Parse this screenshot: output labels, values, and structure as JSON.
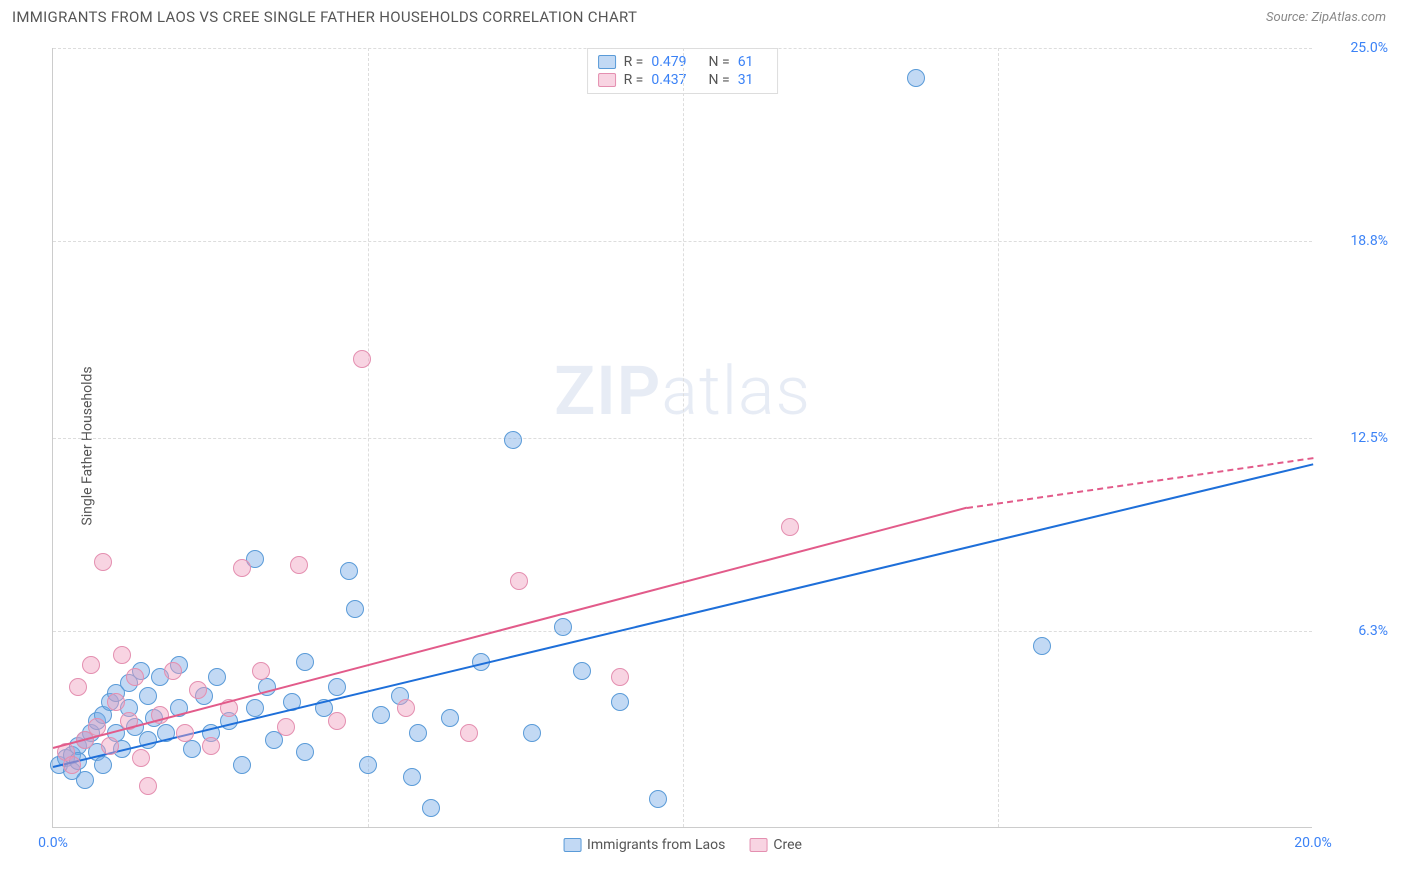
{
  "header": {
    "title": "IMMIGRANTS FROM LAOS VS CREE SINGLE FATHER HOUSEHOLDS CORRELATION CHART",
    "source_prefix": "Source: ",
    "source": "ZipAtlas.com"
  },
  "watermark": {
    "bold": "ZIP",
    "light": "atlas"
  },
  "axes": {
    "ylabel": "Single Father Households",
    "xlim": [
      0,
      20
    ],
    "ylim": [
      0,
      25
    ],
    "xticks": [
      {
        "v": 0,
        "label": "0.0%"
      },
      {
        "v": 20,
        "label": "20.0%"
      }
    ],
    "xgrid": [
      5,
      10,
      15
    ],
    "yticks": [
      {
        "v": 6.3,
        "label": "6.3%"
      },
      {
        "v": 12.5,
        "label": "12.5%"
      },
      {
        "v": 18.8,
        "label": "18.8%"
      },
      {
        "v": 25.0,
        "label": "25.0%"
      }
    ],
    "grid_color": "#dddddd",
    "axis_color": "#cccccc",
    "tick_label_color": "#3b82f6",
    "tick_fontsize": 14
  },
  "series": [
    {
      "name": "Immigrants from Laos",
      "color_fill": "rgba(120,170,230,0.45)",
      "color_stroke": "#5a9bd8",
      "trend_color": "#1e6fd9",
      "marker_radius": 9,
      "stats": {
        "R": "0.479",
        "N": "61"
      },
      "trend": {
        "x1": 0,
        "y1": 2.0,
        "x2": 20,
        "y2": 11.7
      },
      "points": [
        [
          0.1,
          2.0
        ],
        [
          0.2,
          2.2
        ],
        [
          0.3,
          2.3
        ],
        [
          0.3,
          1.8
        ],
        [
          0.4,
          2.6
        ],
        [
          0.4,
          2.1
        ],
        [
          0.5,
          2.8
        ],
        [
          0.5,
          1.5
        ],
        [
          0.6,
          3.0
        ],
        [
          0.7,
          2.4
        ],
        [
          0.7,
          3.4
        ],
        [
          0.8,
          2.0
        ],
        [
          0.8,
          3.6
        ],
        [
          0.9,
          4.0
        ],
        [
          1.0,
          3.0
        ],
        [
          1.0,
          4.3
        ],
        [
          1.1,
          2.5
        ],
        [
          1.2,
          3.8
        ],
        [
          1.2,
          4.6
        ],
        [
          1.3,
          3.2
        ],
        [
          1.4,
          5.0
        ],
        [
          1.5,
          2.8
        ],
        [
          1.5,
          4.2
        ],
        [
          1.6,
          3.5
        ],
        [
          1.7,
          4.8
        ],
        [
          1.8,
          3.0
        ],
        [
          2.0,
          3.8
        ],
        [
          2.0,
          5.2
        ],
        [
          2.2,
          2.5
        ],
        [
          2.4,
          4.2
        ],
        [
          2.5,
          3.0
        ],
        [
          2.6,
          4.8
        ],
        [
          2.8,
          3.4
        ],
        [
          3.0,
          2.0
        ],
        [
          3.2,
          3.8
        ],
        [
          3.2,
          8.6
        ],
        [
          3.4,
          4.5
        ],
        [
          3.5,
          2.8
        ],
        [
          3.8,
          4.0
        ],
        [
          4.0,
          2.4
        ],
        [
          4.0,
          5.3
        ],
        [
          4.3,
          3.8
        ],
        [
          4.5,
          4.5
        ],
        [
          4.7,
          8.2
        ],
        [
          4.8,
          7.0
        ],
        [
          5.0,
          2.0
        ],
        [
          5.2,
          3.6
        ],
        [
          5.5,
          4.2
        ],
        [
          5.7,
          1.6
        ],
        [
          5.8,
          3.0
        ],
        [
          6.0,
          0.6
        ],
        [
          6.3,
          3.5
        ],
        [
          6.8,
          5.3
        ],
        [
          7.3,
          12.4
        ],
        [
          7.6,
          3.0
        ],
        [
          8.1,
          6.4
        ],
        [
          8.4,
          5.0
        ],
        [
          9.0,
          4.0
        ],
        [
          9.6,
          0.9
        ],
        [
          13.7,
          24.0
        ],
        [
          15.7,
          5.8
        ]
      ]
    },
    {
      "name": "Cree",
      "color_fill": "rgba(240,160,190,0.45)",
      "color_stroke": "#e48fb0",
      "trend_color": "#e25b8a",
      "marker_radius": 9,
      "stats": {
        "R": "0.437",
        "N": "31"
      },
      "trend": {
        "x1": 0,
        "y1": 2.6,
        "x2": 14.5,
        "y2": 10.3
      },
      "trend_dash": {
        "x1": 14.5,
        "y1": 10.3,
        "x2": 20,
        "y2": 11.9
      },
      "points": [
        [
          0.2,
          2.4
        ],
        [
          0.3,
          2.0
        ],
        [
          0.4,
          4.5
        ],
        [
          0.5,
          2.8
        ],
        [
          0.6,
          5.2
        ],
        [
          0.7,
          3.2
        ],
        [
          0.8,
          8.5
        ],
        [
          0.9,
          2.6
        ],
        [
          1.0,
          4.0
        ],
        [
          1.1,
          5.5
        ],
        [
          1.2,
          3.4
        ],
        [
          1.3,
          4.8
        ],
        [
          1.4,
          2.2
        ],
        [
          1.5,
          1.3
        ],
        [
          1.7,
          3.6
        ],
        [
          1.9,
          5.0
        ],
        [
          2.1,
          3.0
        ],
        [
          2.3,
          4.4
        ],
        [
          2.5,
          2.6
        ],
        [
          2.8,
          3.8
        ],
        [
          3.0,
          8.3
        ],
        [
          3.3,
          5.0
        ],
        [
          3.7,
          3.2
        ],
        [
          3.9,
          8.4
        ],
        [
          4.5,
          3.4
        ],
        [
          4.9,
          15.0
        ],
        [
          5.6,
          3.8
        ],
        [
          6.6,
          3.0
        ],
        [
          7.4,
          7.9
        ],
        [
          9.0,
          4.8
        ],
        [
          11.7,
          9.6
        ]
      ]
    }
  ],
  "legend_top": {
    "R_label": "R =",
    "N_label": "N ="
  },
  "legend_bottom": {
    "items": [
      "Immigrants from Laos",
      "Cree"
    ]
  }
}
